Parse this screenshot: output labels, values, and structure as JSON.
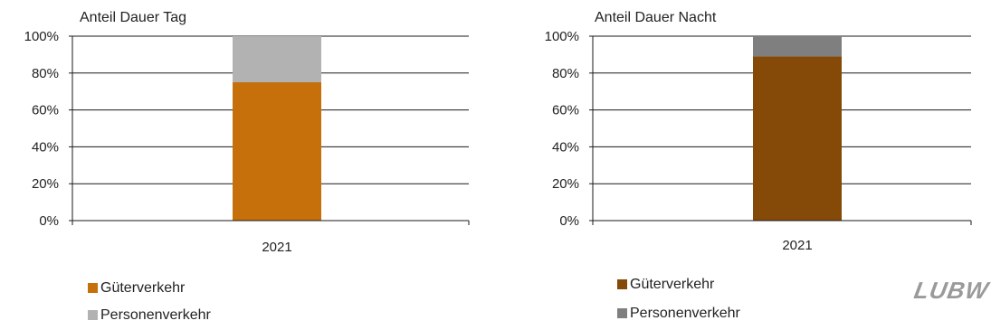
{
  "chart_data": [
    {
      "type": "bar",
      "stacked": true,
      "title": "Anteil Dauer Tag",
      "categories": [
        "2021"
      ],
      "yticks": [
        "0%",
        "20%",
        "40%",
        "60%",
        "80%",
        "100%"
      ],
      "ylim": [
        0,
        100
      ],
      "grid": true,
      "legend_position": "bottom-left",
      "series": [
        {
          "name": "Güterverkehr",
          "values": [
            75
          ],
          "color": "#C5700B"
        },
        {
          "name": "Personenverkehr",
          "values": [
            25
          ],
          "color": "#B2B2B2"
        }
      ]
    },
    {
      "type": "bar",
      "stacked": true,
      "title": "Anteil Dauer Nacht",
      "categories": [
        "2021"
      ],
      "yticks": [
        "0%",
        "20%",
        "40%",
        "60%",
        "80%",
        "100%"
      ],
      "ylim": [
        0,
        100
      ],
      "grid": true,
      "legend_position": "bottom-left",
      "series": [
        {
          "name": "Güterverkehr",
          "values": [
            89
          ],
          "color": "#854A08"
        },
        {
          "name": "Personenverkehr",
          "values": [
            11
          ],
          "color": "#7F7F7F"
        }
      ]
    }
  ],
  "logo": {
    "text": "LUBW",
    "color": "#9a9a9a"
  }
}
